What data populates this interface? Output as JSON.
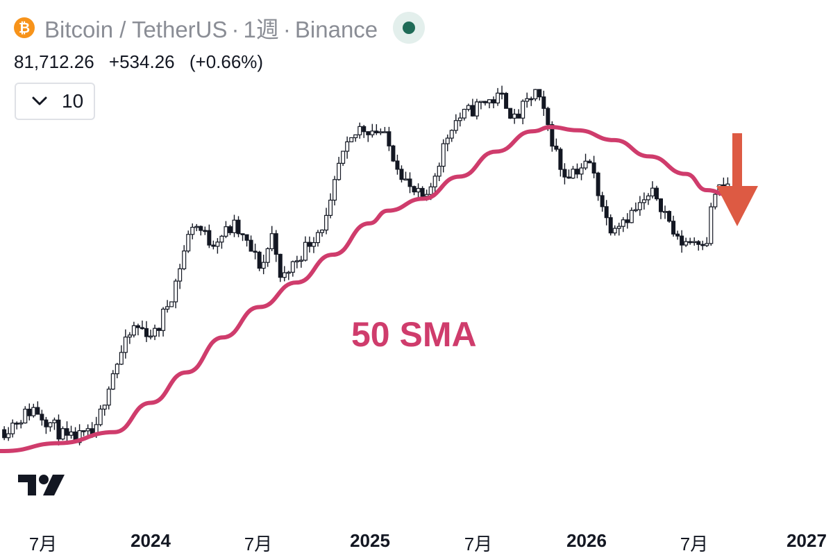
{
  "header": {
    "icon": "bitcoin-icon",
    "icon_glyph": "₿",
    "symbol": "Bitcoin / TetherUS",
    "interval": "1週",
    "exchange": "Binance",
    "separator": "·",
    "status_color": "#1f6b57"
  },
  "quote": {
    "price": "81,712.26",
    "change": "+534.26",
    "change_pct": "(+0.66%)"
  },
  "controls": {
    "collapse_icon": "chevron-down-icon",
    "indicator_count": "10"
  },
  "annotation": {
    "label": "50 SMA",
    "color": "#cf3c6c",
    "arrow_color": "#dd5a43"
  },
  "x_axis": {
    "labels": [
      {
        "text": "7月",
        "year": false
      },
      {
        "text": "2024",
        "year": true
      },
      {
        "text": "7月",
        "year": false
      },
      {
        "text": "2025",
        "year": true
      },
      {
        "text": "7月",
        "year": false
      },
      {
        "text": "2026",
        "year": true
      },
      {
        "text": "7月",
        "year": false
      },
      {
        "text": "2027",
        "year": true
      }
    ]
  },
  "chart_data": {
    "type": "candlestick",
    "interval": "weekly",
    "x_range": [
      "2023-05",
      "2026-10"
    ],
    "y_range": [
      25000,
      126000
    ],
    "close_path": [
      [
        "2023-05-01",
        27500
      ],
      [
        "2023-06-20",
        30300
      ],
      [
        "2023-08-15",
        26200
      ],
      [
        "2023-10-01",
        27000
      ],
      [
        "2023-10-25",
        34500
      ],
      [
        "2023-12-05",
        43500
      ],
      [
        "2024-01-10",
        42000
      ],
      [
        "2024-02-10",
        52000
      ],
      [
        "2024-03-12",
        69500
      ],
      [
        "2024-04-10",
        63500
      ],
      [
        "2024-05-20",
        68000
      ],
      [
        "2024-07-05",
        56500
      ],
      [
        "2024-07-25",
        67000
      ],
      [
        "2024-08-05",
        53000
      ],
      [
        "2024-09-25",
        64000
      ],
      [
        "2024-10-25",
        71000
      ],
      [
        "2024-11-12",
        90000
      ],
      [
        "2024-12-17",
        106000
      ],
      [
        "2025-01-20",
        104000
      ],
      [
        "2025-03-10",
        80000
      ],
      [
        "2025-04-07",
        76000
      ],
      [
        "2025-05-20",
        108000
      ],
      [
        "2025-07-14",
        119000
      ],
      [
        "2025-08-14",
        121000
      ],
      [
        "2025-09-01",
        109000
      ],
      [
        "2025-10-06",
        124000
      ],
      [
        "2025-10-25",
        108000
      ],
      [
        "2025-11-20",
        86000
      ],
      [
        "2026-01-05",
        90000
      ],
      [
        "2026-02-05",
        68000
      ],
      [
        "2026-03-15",
        72000
      ],
      [
        "2026-04-25",
        79000
      ],
      [
        "2026-06-01",
        63500
      ],
      [
        "2026-07-20",
        64500
      ],
      [
        "2026-08-01",
        79000
      ],
      [
        "2026-08-24",
        81712
      ]
    ],
    "sma": {
      "name": "50 SMA",
      "period": 50,
      "points": [
        [
          "2023-05-01",
          25000
        ],
        [
          "2023-08-01",
          25900
        ],
        [
          "2023-11-01",
          27200
        ],
        [
          "2024-01-01",
          31000
        ],
        [
          "2024-03-01",
          35500
        ],
        [
          "2024-05-01",
          41500
        ],
        [
          "2024-07-01",
          47500
        ],
        [
          "2024-09-01",
          53000
        ],
        [
          "2024-11-01",
          60000
        ],
        [
          "2025-01-01",
          69000
        ],
        [
          "2025-02-01",
          73000
        ],
        [
          "2025-04-01",
          77000
        ],
        [
          "2025-06-01",
          85000
        ],
        [
          "2025-08-01",
          95000
        ],
        [
          "2025-10-01",
          104000
        ],
        [
          "2025-11-01",
          106000
        ],
        [
          "2025-12-15",
          104500
        ],
        [
          "2026-02-15",
          100000
        ],
        [
          "2026-04-15",
          93000
        ],
        [
          "2026-06-15",
          86000
        ],
        [
          "2026-07-20",
          80000
        ],
        [
          "2026-08-24",
          78500
        ]
      ]
    },
    "last_close": 81712.26,
    "change": 534.26,
    "change_pct": 0.66
  }
}
